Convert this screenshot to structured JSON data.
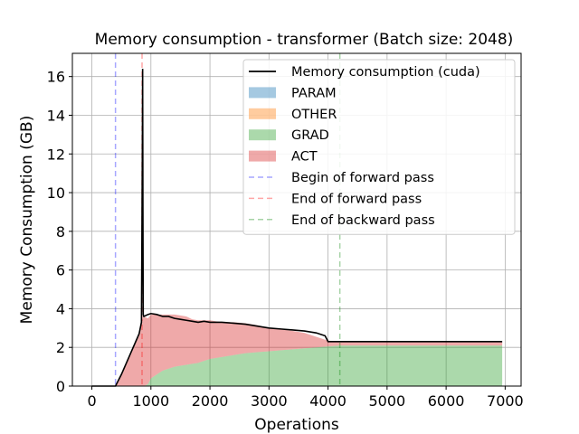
{
  "chart_data": {
    "type": "area",
    "title": "Memory consumption - transformer (Batch size: 2048)",
    "xlabel": "Operations",
    "ylabel": "Memory Consumption (GB)",
    "xlim": [
      -330,
      7270
    ],
    "ylim": [
      0,
      17.2
    ],
    "xticks": [
      0,
      1000,
      2000,
      3000,
      4000,
      5000,
      6000,
      7000
    ],
    "yticks": [
      0,
      2,
      4,
      6,
      8,
      10,
      12,
      14,
      16
    ],
    "grid": true,
    "legend_position": "top-right",
    "colors": {
      "PARAM": "#1f77b4",
      "OTHER": "#ff7f0e",
      "GRAD": "#2ca02c",
      "ACT": "#d62728",
      "cuda_line": "#000000",
      "begin_forward": "#0000ff",
      "end_forward": "#ff0000",
      "end_backward": "#008000"
    },
    "legend": [
      {
        "key": "cuda",
        "label": "Memory consumption (cuda)",
        "style": "line"
      },
      {
        "key": "PARAM",
        "label": "PARAM",
        "style": "patch"
      },
      {
        "key": "OTHER",
        "label": "OTHER",
        "style": "patch"
      },
      {
        "key": "GRAD",
        "label": "GRAD",
        "style": "patch"
      },
      {
        "key": "ACT",
        "label": "ACT",
        "style": "patch"
      },
      {
        "key": "begin_forward",
        "label": "Begin of forward pass",
        "style": "dash"
      },
      {
        "key": "end_forward",
        "label": "End of forward pass",
        "style": "dash"
      },
      {
        "key": "end_backward",
        "label": "End of backward pass",
        "style": "dash"
      }
    ],
    "vlines": [
      {
        "key": "begin_forward",
        "x": 400
      },
      {
        "key": "end_forward",
        "x": 850
      },
      {
        "key": "end_backward",
        "x": 4200
      }
    ],
    "series": [
      {
        "name": "GRAD",
        "x": [
          0,
          400,
          850,
          880,
          950,
          1000,
          1100,
          1200,
          1300,
          1400,
          1500,
          1600,
          1700,
          1800,
          1900,
          2000,
          2200,
          2400,
          2600,
          2800,
          3000,
          3200,
          3400,
          3600,
          3800,
          4000,
          4200,
          5000,
          6000,
          6950
        ],
        "values": [
          0,
          0,
          0,
          0,
          0.1,
          0.4,
          0.6,
          0.8,
          0.9,
          1.0,
          1.05,
          1.1,
          1.15,
          1.2,
          1.3,
          1.4,
          1.5,
          1.6,
          1.7,
          1.75,
          1.8,
          1.85,
          1.9,
          1.95,
          2.0,
          2.05,
          2.1,
          2.1,
          2.1,
          2.1
        ]
      },
      {
        "name": "ACT",
        "x": [
          0,
          400,
          500,
          600,
          700,
          800,
          850,
          880,
          950,
          1000,
          1100,
          1200,
          1300,
          1400,
          1500,
          1600,
          1700,
          1800,
          1900,
          2000,
          2200,
          2400,
          2600,
          2800,
          3000,
          3200,
          3400,
          3600,
          3800,
          4000,
          4200,
          5000,
          6000,
          6950
        ],
        "values": [
          0,
          0,
          0.6,
          1.3,
          2.0,
          2.7,
          3.4,
          3.6,
          3.4,
          3.3,
          3.1,
          2.9,
          2.8,
          2.7,
          2.6,
          2.5,
          2.3,
          2.2,
          2.1,
          2.0,
          1.8,
          1.7,
          1.55,
          1.4,
          1.2,
          1.1,
          0.95,
          0.8,
          0.55,
          0.3,
          0.2,
          0.2,
          0.2,
          0.2
        ]
      },
      {
        "name": "Memory consumption (cuda)",
        "x": [
          0,
          400,
          500,
          600,
          700,
          800,
          840,
          855,
          860,
          865,
          870,
          880,
          950,
          1000,
          1100,
          1200,
          1300,
          1400,
          1500,
          1600,
          1700,
          1800,
          1900,
          2000,
          2200,
          2400,
          2600,
          2800,
          3000,
          3200,
          3400,
          3600,
          3800,
          3950,
          4000,
          4200,
          5000,
          6000,
          6950
        ],
        "values": [
          0,
          0,
          0.6,
          1.3,
          2.0,
          2.7,
          3.3,
          12.0,
          16.4,
          9.0,
          3.7,
          3.6,
          3.7,
          3.75,
          3.7,
          3.6,
          3.6,
          3.5,
          3.45,
          3.4,
          3.35,
          3.3,
          3.35,
          3.3,
          3.3,
          3.25,
          3.2,
          3.1,
          3.0,
          2.95,
          2.9,
          2.85,
          2.75,
          2.6,
          2.3,
          2.3,
          2.3,
          2.3,
          2.3
        ]
      }
    ]
  }
}
